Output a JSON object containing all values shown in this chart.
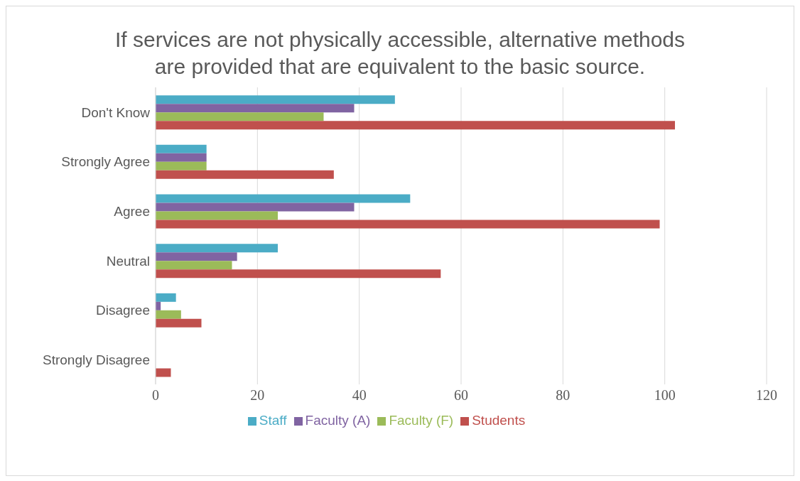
{
  "chart_data": {
    "type": "bar",
    "orientation": "horizontal",
    "title": "If services are not physically accessible, alternative methods are provided that are equivalent to the basic source.",
    "categories": [
      "Don't Know",
      "Strongly Agree",
      "Agree",
      "Neutral",
      "Disagree",
      "Strongly Disagree"
    ],
    "series": [
      {
        "name": "Staff",
        "color": "#4bacc6",
        "values": [
          47,
          10,
          50,
          24,
          4,
          0
        ]
      },
      {
        "name": "Faculty (A)",
        "color": "#8064a2",
        "values": [
          39,
          10,
          39,
          16,
          1,
          0
        ]
      },
      {
        "name": "Faculty (F)",
        "color": "#9bbb59",
        "values": [
          33,
          10,
          24,
          15,
          5,
          0
        ]
      },
      {
        "name": "Students",
        "color": "#c0504d",
        "values": [
          102,
          35,
          99,
          56,
          9,
          3
        ]
      }
    ],
    "xlim": [
      0,
      120
    ],
    "xticks": [
      0,
      20,
      40,
      60,
      80,
      100,
      120
    ],
    "grid": "x",
    "legend": "bottom"
  }
}
